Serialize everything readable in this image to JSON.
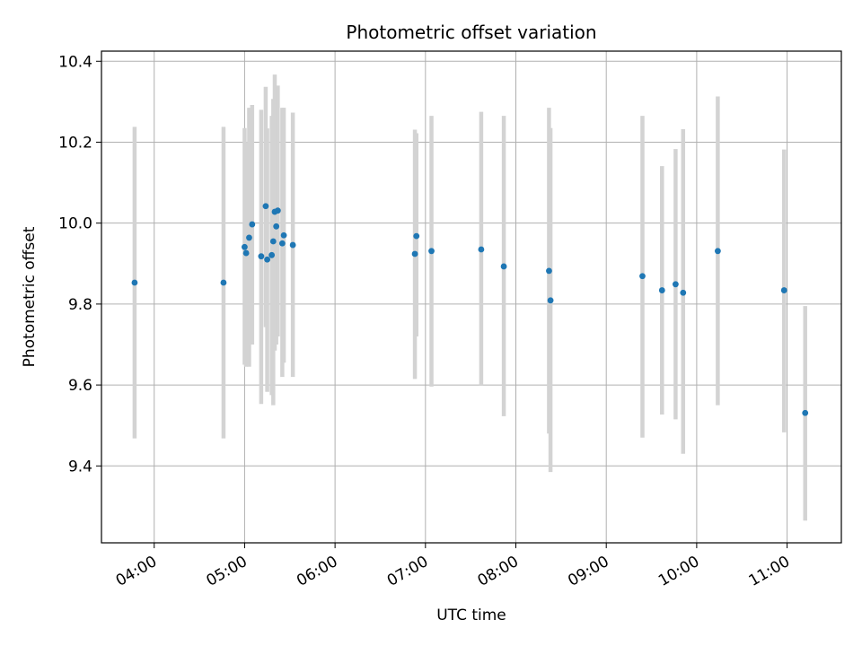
{
  "chart_data": {
    "type": "scatter",
    "title": "Photometric offset variation",
    "xlabel": "UTC time",
    "ylabel": "Photometric offset",
    "xlim": [
      "03:25",
      "11:36"
    ],
    "ylim": [
      9.21,
      10.425
    ],
    "x_ticks": [
      "04:00",
      "05:00",
      "06:00",
      "07:00",
      "08:00",
      "09:00",
      "10:00",
      "11:00"
    ],
    "y_ticks": [
      "9.4",
      "9.6",
      "9.8",
      "10.0",
      "10.2",
      "10.4"
    ],
    "grid": true,
    "point_color": "#1f77b4",
    "errorbar_color": "#d3d3d3",
    "points": [
      {
        "x": "03:47",
        "y": 9.853,
        "err_low": 9.468,
        "err_high": 10.238
      },
      {
        "x": "04:46",
        "y": 9.853,
        "err_low": 9.468,
        "err_high": 10.238
      },
      {
        "x": "05:00",
        "y": 9.941,
        "err_low": 9.65,
        "err_high": 10.235
      },
      {
        "x": "05:01",
        "y": 9.926,
        "err_low": 9.645,
        "err_high": 10.2
      },
      {
        "x": "05:03",
        "y": 9.964,
        "err_low": 9.645,
        "err_high": 10.285
      },
      {
        "x": "05:05",
        "y": 9.997,
        "err_low": 9.7,
        "err_high": 10.292
      },
      {
        "x": "05:11",
        "y": 9.918,
        "err_low": 9.553,
        "err_high": 10.28
      },
      {
        "x": "05:14",
        "y": 10.042,
        "err_low": 9.743,
        "err_high": 10.337
      },
      {
        "x": "05:15",
        "y": 9.91,
        "err_low": 9.583,
        "err_high": 10.234
      },
      {
        "x": "05:18",
        "y": 9.921,
        "err_low": 9.575,
        "err_high": 10.265
      },
      {
        "x": "05:19",
        "y": 9.955,
        "err_low": 9.55,
        "err_high": 10.307
      },
      {
        "x": "05:20",
        "y": 10.028,
        "err_low": 9.685,
        "err_high": 10.367
      },
      {
        "x": "05:21",
        "y": 9.992,
        "err_low": 9.7,
        "err_high": 10.3
      },
      {
        "x": "05:22",
        "y": 10.031,
        "err_low": 9.72,
        "err_high": 10.34
      },
      {
        "x": "05:25",
        "y": 9.95,
        "err_low": 9.62,
        "err_high": 10.285
      },
      {
        "x": "05:26",
        "y": 9.97,
        "err_low": 9.655,
        "err_high": 10.285
      },
      {
        "x": "05:32",
        "y": 9.946,
        "err_low": 9.62,
        "err_high": 10.273
      },
      {
        "x": "06:53",
        "y": 9.924,
        "err_low": 9.615,
        "err_high": 10.231
      },
      {
        "x": "06:54",
        "y": 9.968,
        "err_low": 9.72,
        "err_high": 10.222
      },
      {
        "x": "07:04",
        "y": 9.931,
        "err_low": 9.596,
        "err_high": 10.265
      },
      {
        "x": "07:37",
        "y": 9.935,
        "err_low": 9.598,
        "err_high": 10.275
      },
      {
        "x": "07:52",
        "y": 9.893,
        "err_low": 9.523,
        "err_high": 10.265
      },
      {
        "x": "08:22",
        "y": 9.882,
        "err_low": 9.48,
        "err_high": 10.285
      },
      {
        "x": "08:23",
        "y": 9.809,
        "err_low": 9.385,
        "err_high": 10.235
      },
      {
        "x": "09:24",
        "y": 9.869,
        "err_low": 9.47,
        "err_high": 10.265
      },
      {
        "x": "09:37",
        "y": 9.834,
        "err_low": 9.527,
        "err_high": 10.141
      },
      {
        "x": "09:46",
        "y": 9.849,
        "err_low": 9.515,
        "err_high": 10.183
      },
      {
        "x": "09:51",
        "y": 9.828,
        "err_low": 9.43,
        "err_high": 10.232
      },
      {
        "x": "10:14",
        "y": 9.931,
        "err_low": 9.55,
        "err_high": 10.313
      },
      {
        "x": "10:58",
        "y": 9.834,
        "err_low": 9.483,
        "err_high": 10.182
      },
      {
        "x": "11:12",
        "y": 9.531,
        "err_low": 9.265,
        "err_high": 9.795
      }
    ]
  }
}
